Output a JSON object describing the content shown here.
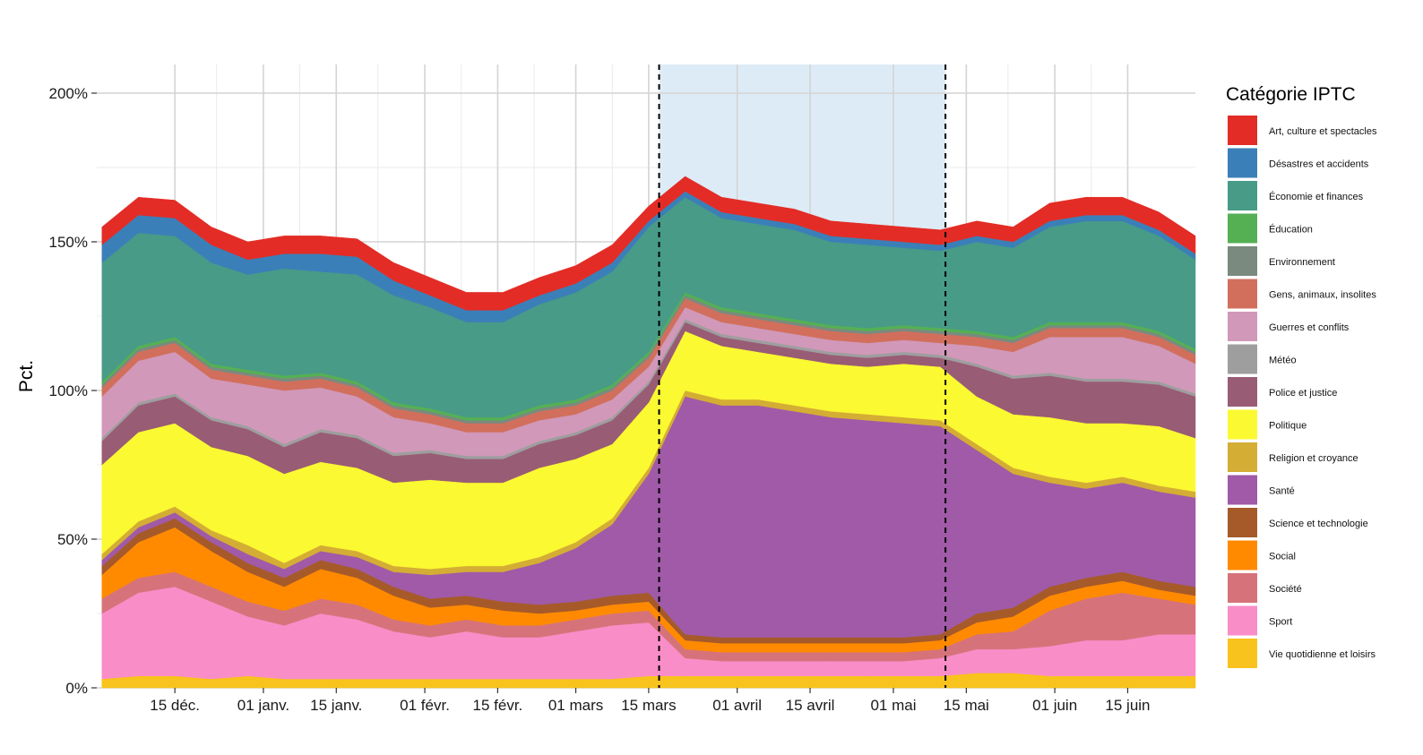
{
  "chart_data": {
    "type": "area",
    "stacked": true,
    "ylabel": "Pct.",
    "ylim": [
      0,
      200
    ],
    "y_ticks": [
      "0%",
      "50%",
      "100%",
      "150%",
      "200%"
    ],
    "y_tick_values": [
      0,
      50,
      100,
      150,
      200
    ],
    "x_range": [
      "2019-11-30",
      "2020-06-28"
    ],
    "x_ticks": [
      {
        "date": "2019-12-15",
        "label": "15 déc."
      },
      {
        "date": "2020-01-01",
        "label": "01 janv."
      },
      {
        "date": "2020-01-15",
        "label": "15 janv."
      },
      {
        "date": "2020-02-01",
        "label": "01 févr."
      },
      {
        "date": "2020-02-15",
        "label": "15 févr."
      },
      {
        "date": "2020-03-01",
        "label": "01 mars"
      },
      {
        "date": "2020-03-15",
        "label": "15 mars"
      },
      {
        "date": "2020-04-01",
        "label": "01 avril"
      },
      {
        "date": "2020-04-15",
        "label": "15 avril"
      },
      {
        "date": "2020-05-01",
        "label": "01 mai"
      },
      {
        "date": "2020-05-15",
        "label": "15 mai"
      },
      {
        "date": "2020-06-01",
        "label": "01 juin"
      },
      {
        "date": "2020-06-15",
        "label": "15 juin"
      }
    ],
    "shaded_period": {
      "start": "2020-03-17",
      "end": "2020-05-11"
    },
    "x": [
      "2019-12-01",
      "2019-12-08",
      "2019-12-15",
      "2019-12-22",
      "2019-12-29",
      "2020-01-05",
      "2020-01-12",
      "2020-01-19",
      "2020-01-26",
      "2020-02-02",
      "2020-02-09",
      "2020-02-16",
      "2020-02-23",
      "2020-03-01",
      "2020-03-08",
      "2020-03-15",
      "2020-03-22",
      "2020-03-29",
      "2020-04-05",
      "2020-04-12",
      "2020-04-19",
      "2020-04-26",
      "2020-05-03",
      "2020-05-10",
      "2020-05-17",
      "2020-05-24",
      "2020-05-31",
      "2020-06-07",
      "2020-06-14",
      "2020-06-21",
      "2020-06-28"
    ],
    "series": [
      {
        "name": "Vie quotidienne et loisirs",
        "color": "#F8C31C",
        "values": [
          3,
          4,
          4,
          3,
          4,
          3,
          3,
          3,
          3,
          3,
          3,
          3,
          3,
          3,
          3,
          4,
          4,
          4,
          4,
          4,
          4,
          4,
          4,
          4,
          5,
          5,
          4,
          4,
          4,
          4,
          4
        ]
      },
      {
        "name": "Sport",
        "color": "#F98DC8",
        "values": [
          22,
          28,
          30,
          26,
          20,
          18,
          22,
          20,
          16,
          14,
          16,
          14,
          14,
          16,
          18,
          18,
          6,
          5,
          5,
          5,
          5,
          5,
          5,
          6,
          8,
          8,
          10,
          12,
          12,
          14,
          14
        ]
      },
      {
        "name": "Société",
        "color": "#D6737A",
        "values": [
          5,
          5,
          5,
          5,
          5,
          5,
          5,
          5,
          4,
          4,
          4,
          4,
          4,
          4,
          4,
          4,
          3,
          3,
          3,
          3,
          3,
          3,
          3,
          3,
          5,
          6,
          12,
          14,
          16,
          12,
          10
        ]
      },
      {
        "name": "Social",
        "color": "#FF8A00",
        "values": [
          8,
          12,
          15,
          12,
          10,
          8,
          10,
          9,
          8,
          6,
          5,
          5,
          4,
          3,
          3,
          3,
          3,
          3,
          3,
          3,
          3,
          3,
          3,
          3,
          4,
          5,
          5,
          4,
          4,
          3,
          3
        ]
      },
      {
        "name": "Science et technologie",
        "color": "#A65A2A",
        "values": [
          3,
          3,
          3,
          3,
          3,
          3,
          3,
          3,
          3,
          3,
          3,
          3,
          3,
          3,
          3,
          3,
          2,
          2,
          2,
          2,
          2,
          2,
          2,
          2,
          3,
          3,
          3,
          3,
          3,
          3,
          3
        ]
      },
      {
        "name": "Santé",
        "color": "#A05AA8",
        "values": [
          2,
          2,
          2,
          2,
          3,
          3,
          3,
          4,
          5,
          8,
          8,
          10,
          14,
          18,
          24,
          40,
          80,
          78,
          78,
          76,
          74,
          73,
          72,
          70,
          55,
          45,
          35,
          30,
          30,
          30,
          30
        ]
      },
      {
        "name": "Religion et croyance",
        "color": "#D4AD34",
        "values": [
          2,
          2,
          2,
          2,
          3,
          2,
          2,
          2,
          2,
          2,
          2,
          2,
          2,
          2,
          2,
          2,
          2,
          2,
          2,
          2,
          2,
          2,
          2,
          2,
          2,
          2,
          2,
          2,
          2,
          2,
          2
        ]
      },
      {
        "name": "Politique",
        "color": "#FBF932",
        "values": [
          30,
          30,
          28,
          28,
          30,
          30,
          28,
          28,
          28,
          30,
          28,
          28,
          30,
          28,
          25,
          22,
          20,
          18,
          16,
          16,
          16,
          16,
          18,
          18,
          16,
          18,
          20,
          20,
          18,
          20,
          18
        ]
      },
      {
        "name": "Police et justice",
        "color": "#995C75",
        "values": [
          8,
          9,
          9,
          9,
          9,
          9,
          10,
          10,
          9,
          9,
          8,
          8,
          8,
          8,
          8,
          6,
          3,
          3,
          3,
          3,
          3,
          3,
          3,
          3,
          10,
          12,
          14,
          14,
          14,
          14,
          14
        ]
      },
      {
        "name": "Météo",
        "color": "#9E9E9E",
        "values": [
          1,
          1,
          1,
          1,
          1,
          1,
          1,
          1,
          1,
          1,
          1,
          1,
          1,
          1,
          1,
          1,
          1,
          1,
          1,
          1,
          1,
          1,
          1,
          1,
          1,
          1,
          1,
          1,
          1,
          1,
          1
        ]
      },
      {
        "name": "Guerres et conflits",
        "color": "#D198B9",
        "values": [
          14,
          14,
          14,
          13,
          14,
          18,
          14,
          13,
          12,
          9,
          8,
          8,
          7,
          6,
          6,
          5,
          4,
          4,
          4,
          4,
          4,
          4,
          4,
          4,
          6,
          8,
          12,
          14,
          14,
          12,
          10
        ]
      },
      {
        "name": "Gens, animaux, insolites",
        "color": "#D16F5C",
        "values": [
          3,
          3,
          3,
          3,
          3,
          3,
          3,
          3,
          3,
          3,
          3,
          3,
          3,
          3,
          3,
          3,
          3,
          3,
          3,
          3,
          3,
          3,
          3,
          3,
          3,
          3,
          3,
          3,
          3,
          3,
          3
        ]
      },
      {
        "name": "Environnement",
        "color": "#7A8A7E",
        "values": [
          1,
          1,
          1,
          1,
          1,
          1,
          1,
          1,
          1,
          1,
          1,
          1,
          1,
          1,
          1,
          1,
          1,
          1,
          1,
          1,
          1,
          1,
          1,
          1,
          1,
          1,
          1,
          1,
          1,
          1,
          1
        ]
      },
      {
        "name": "Éducation",
        "color": "#55B054",
        "values": [
          1,
          1,
          1,
          1,
          1,
          1,
          1,
          1,
          1,
          1,
          1,
          1,
          1,
          1,
          1,
          1,
          1,
          1,
          1,
          1,
          1,
          1,
          1,
          1,
          1,
          1,
          1,
          1,
          1,
          1,
          1
        ]
      },
      {
        "name": "Économie et finances",
        "color": "#479B87",
        "values": [
          40,
          38,
          34,
          34,
          32,
          36,
          34,
          36,
          36,
          34,
          32,
          32,
          34,
          36,
          38,
          42,
          32,
          30,
          30,
          30,
          28,
          28,
          26,
          26,
          30,
          30,
          32,
          34,
          34,
          32,
          30
        ]
      },
      {
        "name": "Désastres et accidents",
        "color": "#3B7FB8",
        "values": [
          6,
          6,
          6,
          6,
          5,
          5,
          6,
          6,
          5,
          4,
          4,
          4,
          3,
          3,
          3,
          2,
          2,
          2,
          2,
          2,
          2,
          2,
          2,
          2,
          2,
          2,
          2,
          2,
          2,
          2,
          2
        ]
      },
      {
        "name": "Art, culture et spectacles",
        "color": "#E32C26",
        "values": [
          6,
          6,
          6,
          6,
          6,
          6,
          6,
          6,
          6,
          6,
          6,
          6,
          6,
          6,
          6,
          5,
          5,
          5,
          5,
          5,
          5,
          5,
          5,
          5,
          5,
          5,
          6,
          6,
          6,
          6,
          6
        ]
      }
    ],
    "legend": {
      "title": "Catégorie IPTC",
      "position": "right"
    },
    "grid": true
  }
}
